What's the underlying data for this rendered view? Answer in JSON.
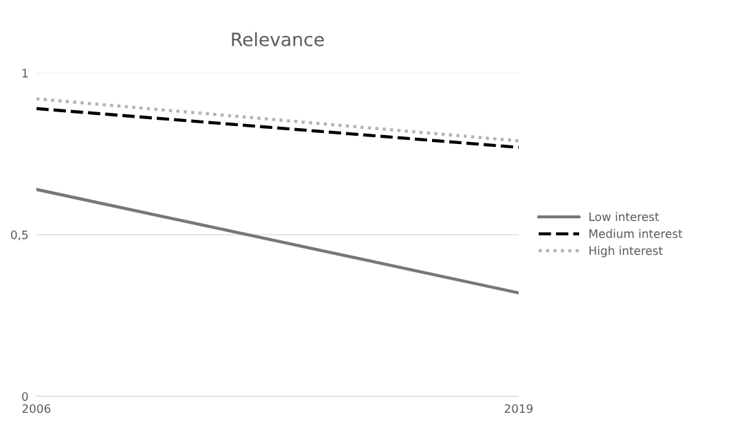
{
  "chart_data": {
    "type": "line",
    "title": "Relevance",
    "x": [
      2006,
      2019
    ],
    "series": [
      {
        "name": "Low interest",
        "color": "#7a7576",
        "line_style": "solid",
        "values": [
          0.64,
          0.32
        ]
      },
      {
        "name": "Medium interest",
        "color": "#000000",
        "line_style": "dashed",
        "values": [
          0.89,
          0.77
        ]
      },
      {
        "name": "High interest",
        "color": "#b3b3b3",
        "line_style": "dotted",
        "values": [
          0.92,
          0.79
        ]
      }
    ],
    "xlim": [
      2006,
      2019
    ],
    "xticks": [
      2006,
      2019
    ],
    "ylim": [
      0,
      1
    ],
    "yticks": [
      0,
      {
        "value": 0.5,
        "label": "0,5"
      },
      1
    ],
    "grid": "y",
    "legend": "right",
    "marker": "none"
  }
}
